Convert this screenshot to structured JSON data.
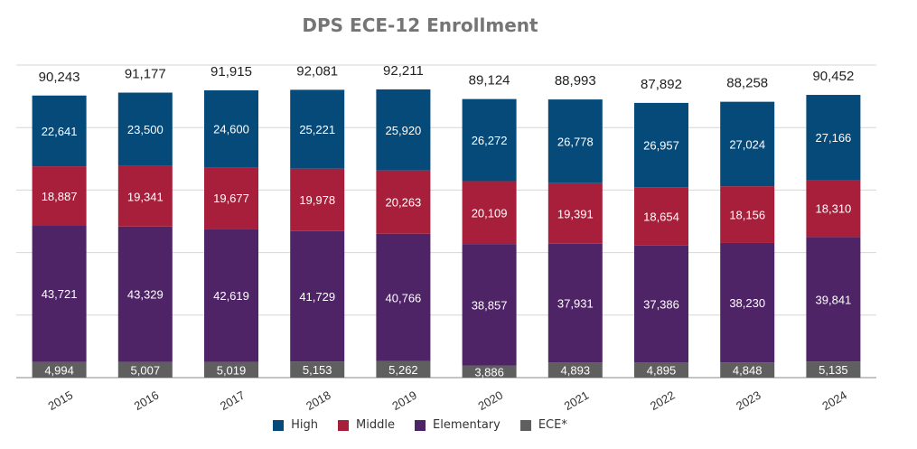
{
  "chart_data": {
    "type": "bar",
    "stacked": true,
    "title": "DPS ECE-12 Enrollment",
    "xlabel": "",
    "ylabel": "",
    "ylim": [
      0,
      100000
    ],
    "grid": true,
    "legend_position": "bottom",
    "categories": [
      "2015",
      "2016",
      "2017",
      "2018",
      "2019",
      "2020",
      "2021",
      "2022",
      "2023",
      "2024"
    ],
    "totals": [
      90243,
      91177,
      91915,
      92081,
      92211,
      89124,
      88993,
      87892,
      88258,
      90452
    ],
    "totals_labels": [
      "90,243",
      "91,177",
      "91,915",
      "92,081",
      "92,211",
      "89,124",
      "88,993",
      "87,892",
      "88,258",
      "90,452"
    ],
    "series": [
      {
        "name": "ECE*",
        "color": "#5f5f5f",
        "values": [
          4994,
          5007,
          5019,
          5153,
          5262,
          3886,
          4893,
          4895,
          4848,
          5135
        ],
        "labels": [
          "4,994",
          "5,007",
          "5,019",
          "5,153",
          "5,262",
          "3,886",
          "4,893",
          "4,895",
          "4,848",
          "5,135"
        ]
      },
      {
        "name": "Elementary",
        "color": "#4f2466",
        "values": [
          43721,
          43329,
          42619,
          41729,
          40766,
          38857,
          37931,
          37386,
          38230,
          39841
        ],
        "labels": [
          "43,721",
          "43,329",
          "42,619",
          "41,729",
          "40,766",
          "38,857",
          "37,931",
          "37,386",
          "38,230",
          "39,841"
        ]
      },
      {
        "name": "Middle",
        "color": "#a71f3a",
        "values": [
          18887,
          19341,
          19677,
          19978,
          20263,
          20109,
          19391,
          18654,
          18156,
          18310
        ],
        "labels": [
          "18,887",
          "19,341",
          "19,677",
          "19,978",
          "20,263",
          "20,109",
          "19,391",
          "18,654",
          "18,156",
          "18,310"
        ]
      },
      {
        "name": "High",
        "color": "#064a7a",
        "values": [
          22641,
          23500,
          24600,
          25221,
          25920,
          26272,
          26778,
          26957,
          27024,
          27166
        ],
        "labels": [
          "22,641",
          "23,500",
          "24,600",
          "25,221",
          "25,920",
          "26,272",
          "26,778",
          "26,957",
          "27,024",
          "27,166"
        ]
      }
    ],
    "legend_order": [
      "High",
      "Middle",
      "Elementary",
      "ECE*"
    ]
  }
}
